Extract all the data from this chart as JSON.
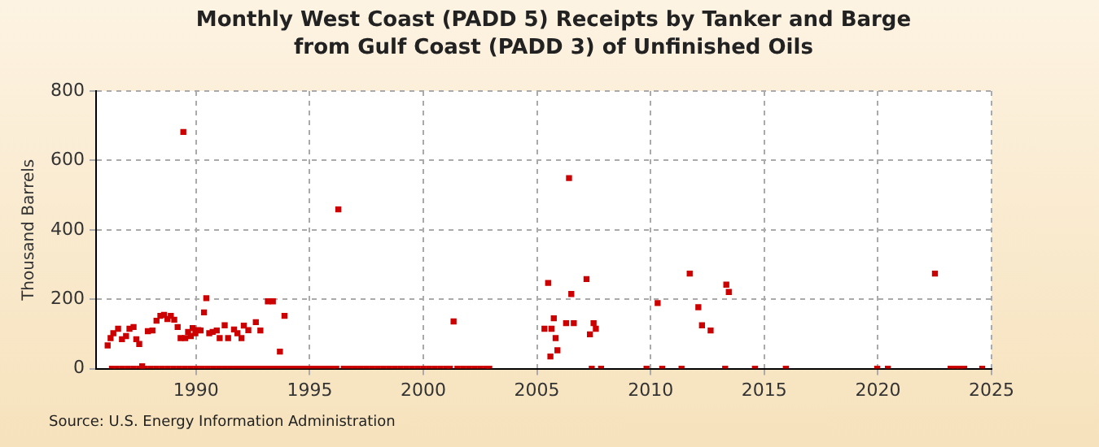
{
  "chart_data": {
    "type": "scatter",
    "title": "Monthly West Coast (PADD 5) Receipts by Tanker and Barge from Gulf Coast (PADD 3) of Unfinished Oils",
    "ylabel": "Thousand Barrels",
    "annotations": [
      "Source: U.S. Energy Information Administration"
    ],
    "x": [
      1986.11,
      1986.24,
      1986.36,
      1986.57,
      1986.74,
      1986.92,
      1987.07,
      1987.25,
      1987.37,
      1987.5,
      1987.63,
      1987.88,
      1988.08,
      1988.26,
      1988.43,
      1988.59,
      1988.74,
      1988.89,
      1989.04,
      1989.19,
      1989.32,
      1989.44,
      1989.52,
      1989.65,
      1989.77,
      1989.85,
      1989.97,
      1990.1,
      1990.2,
      1990.35,
      1990.45,
      1990.58,
      1990.73,
      1990.91,
      1991.04,
      1991.26,
      1991.41,
      1991.67,
      1991.82,
      1992.0,
      1992.1,
      1992.3,
      1992.63,
      1992.83,
      1993.16,
      1993.38,
      1993.69,
      1993.89,
      1996.26,
      2001.33,
      2005.33,
      2005.49,
      2005.59,
      2005.64,
      2005.74,
      2005.82,
      2005.9,
      2006.28,
      2006.41,
      2006.51,
      2006.62,
      2007.18,
      2007.33,
      2007.49,
      2007.59,
      2010.31,
      2011.72,
      2012.1,
      2012.26,
      2012.64,
      2013.33,
      2013.44,
      2022.51,
      1986.3,
      1986.5,
      1986.75,
      1987.0,
      1987.25,
      1987.5,
      1987.75,
      1988.0,
      1988.25,
      1988.5,
      1988.75,
      1989.0,
      1989.25,
      1989.5,
      1989.75,
      1990.0,
      1990.25,
      1990.5,
      1990.75,
      1991.0,
      1991.25,
      1991.5,
      1991.75,
      1992.0,
      1992.25,
      1992.5,
      1992.75,
      1993.0,
      1993.25,
      1993.5,
      1993.75,
      1994.0,
      1994.25,
      1994.5,
      1994.75,
      1995.0,
      1995.25,
      1995.5,
      1995.75,
      1996.0,
      1996.17,
      1996.5,
      1996.75,
      1997.0,
      1997.25,
      1997.5,
      1997.75,
      1998.0,
      1998.25,
      1998.5,
      1998.75,
      1999.0,
      1999.25,
      1999.5,
      1999.75,
      2000.0,
      2000.25,
      2000.5,
      2000.75,
      2001.0,
      2001.17,
      2001.5,
      2001.75,
      2002.0,
      2002.25,
      2002.5,
      2002.75,
      2002.9,
      2007.41,
      2007.82,
      2009.82,
      2010.51,
      2011.36,
      2013.28,
      2014.59,
      2015.95,
      2019.97,
      2020.44,
      2023.2,
      2023.4,
      2023.6,
      2023.8,
      2024.59
    ],
    "values": [
      67,
      88,
      102,
      115,
      85,
      94,
      115,
      120,
      85,
      71,
      7,
      108,
      110,
      138,
      152,
      155,
      143,
      152,
      141,
      120,
      88,
      682,
      88,
      106,
      94,
      117,
      102,
      111,
      110,
      162,
      203,
      102,
      106,
      110,
      88,
      125,
      88,
      113,
      102,
      88,
      124,
      111,
      134,
      110,
      194,
      194,
      49,
      152,
      459,
      136,
      115,
      247,
      35,
      115,
      145,
      88,
      53,
      131,
      549,
      215,
      131,
      258,
      99,
      131,
      115,
      189,
      274,
      177,
      125,
      110,
      242,
      221,
      274,
      0,
      0,
      0,
      0,
      0,
      0,
      0,
      0,
      0,
      0,
      0,
      0,
      0,
      0,
      0,
      0,
      0,
      0,
      0,
      0,
      0,
      0,
      0,
      0,
      0,
      0,
      0,
      0,
      0,
      0,
      0,
      0,
      0,
      0,
      0,
      0,
      0,
      0,
      0,
      0,
      0,
      0,
      0,
      0,
      0,
      0,
      0,
      0,
      0,
      0,
      0,
      0,
      0,
      0,
      0,
      0,
      0,
      0,
      0,
      0,
      0,
      0,
      0,
      0,
      0,
      0,
      0,
      0,
      0,
      0,
      0,
      0,
      0,
      0,
      0,
      0,
      0,
      0,
      0,
      0,
      0,
      0,
      0
    ],
    "color": "#cc0000",
    "marker": "square",
    "xlim": [
      1985.6,
      2025
    ],
    "xticks": [
      1990,
      1995,
      2000,
      2005,
      2010,
      2015,
      2020,
      2025
    ],
    "ylim": [
      0,
      800
    ],
    "yticks": [
      0,
      200,
      400,
      600,
      800
    ],
    "grid": true
  }
}
